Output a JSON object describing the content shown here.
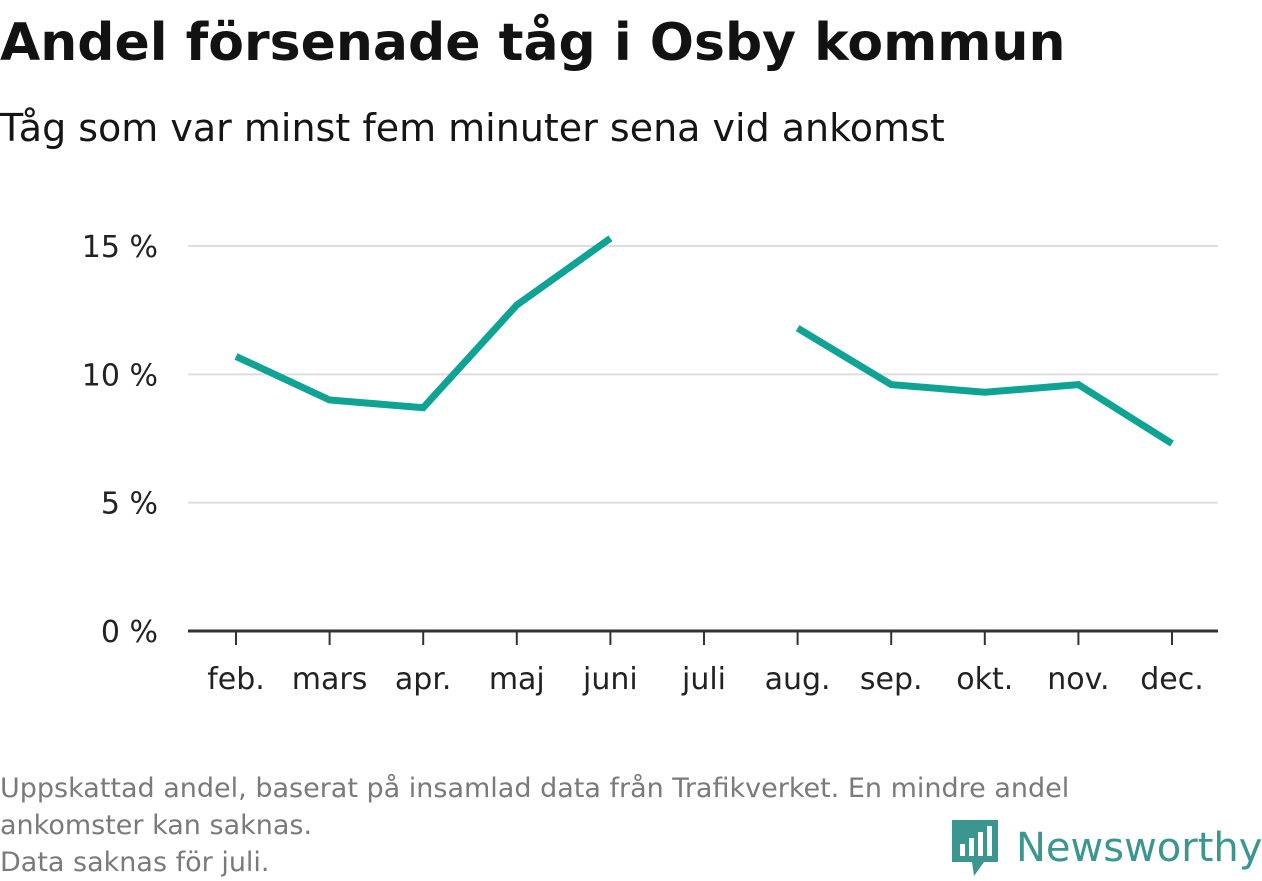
{
  "title": "Andel försenade tåg i Osby kommun",
  "subtitle": "Tåg som var minst fem minuter sena vid ankomst",
  "footnote": {
    "line1": "Uppskattad andel, baserat på insamlad data från Trafikverket. En mindre andel",
    "line2": "ankomster kan saknas.",
    "line3": "Data saknas för juli."
  },
  "logo": {
    "text": "Newsworthy",
    "color": "#3a968f"
  },
  "colors": {
    "line": "#0fa396",
    "grid": "#dddddd",
    "axis": "#333333"
  },
  "chart_data": {
    "type": "line",
    "title": "Andel försenade tåg i Osby kommun",
    "subtitle": "Tåg som var minst fem minuter sena vid ankomst",
    "categories": [
      "feb.",
      "mars",
      "apr.",
      "maj",
      "juni",
      "juli",
      "aug.",
      "sep.",
      "okt.",
      "nov.",
      "dec."
    ],
    "values": [
      10.7,
      9.0,
      8.7,
      12.7,
      15.3,
      null,
      11.8,
      9.6,
      9.3,
      9.6,
      7.3
    ],
    "y_ticks": [
      0,
      5,
      10,
      15
    ],
    "y_tick_labels": [
      "0 %",
      "5 %",
      "10 %",
      "15 %"
    ],
    "ylim": [
      0,
      15
    ],
    "grid": true,
    "legend": "none"
  }
}
